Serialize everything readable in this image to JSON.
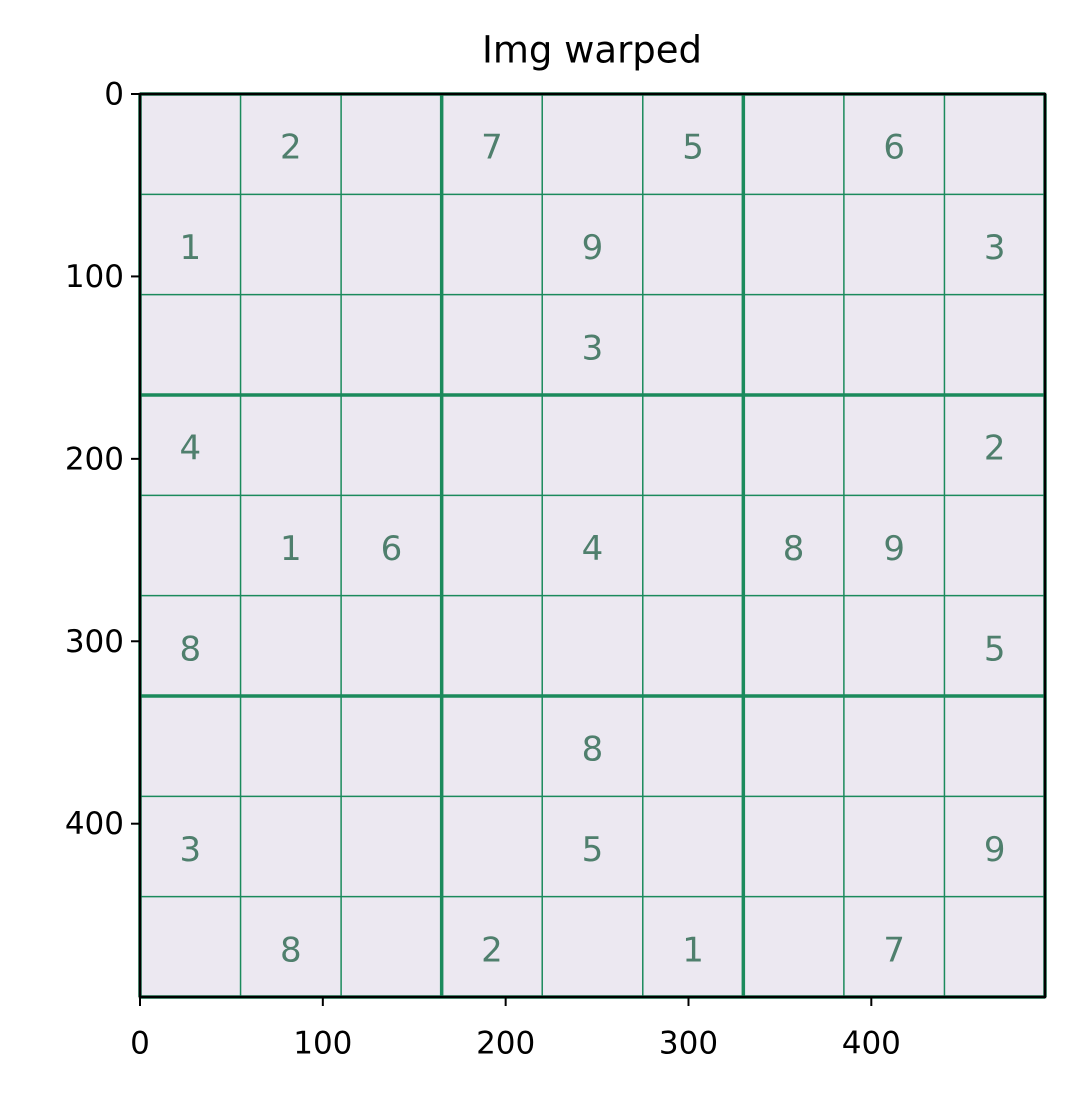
{
  "chart_data": {
    "type": "image",
    "title": "Img warped",
    "xlim": [
      0,
      495
    ],
    "ylim": [
      495,
      0
    ],
    "xticks": [
      0,
      100,
      200,
      300,
      400
    ],
    "yticks": [
      0,
      100,
      200,
      300,
      400
    ],
    "cells": [
      [
        null,
        2,
        null,
        7,
        null,
        5,
        null,
        6,
        null
      ],
      [
        1,
        null,
        null,
        null,
        9,
        null,
        null,
        null,
        3
      ],
      [
        null,
        null,
        null,
        null,
        3,
        null,
        null,
        null,
        null
      ],
      [
        4,
        null,
        null,
        null,
        null,
        null,
        null,
        null,
        2
      ],
      [
        null,
        1,
        6,
        null,
        4,
        null,
        8,
        9,
        null
      ],
      [
        8,
        null,
        null,
        null,
        null,
        null,
        null,
        null,
        5
      ],
      [
        null,
        null,
        null,
        null,
        8,
        null,
        null,
        null,
        null
      ],
      [
        3,
        null,
        null,
        null,
        5,
        null,
        null,
        null,
        9
      ],
      [
        null,
        8,
        null,
        2,
        null,
        1,
        null,
        7,
        null
      ]
    ],
    "color": "#1b8a5c"
  }
}
